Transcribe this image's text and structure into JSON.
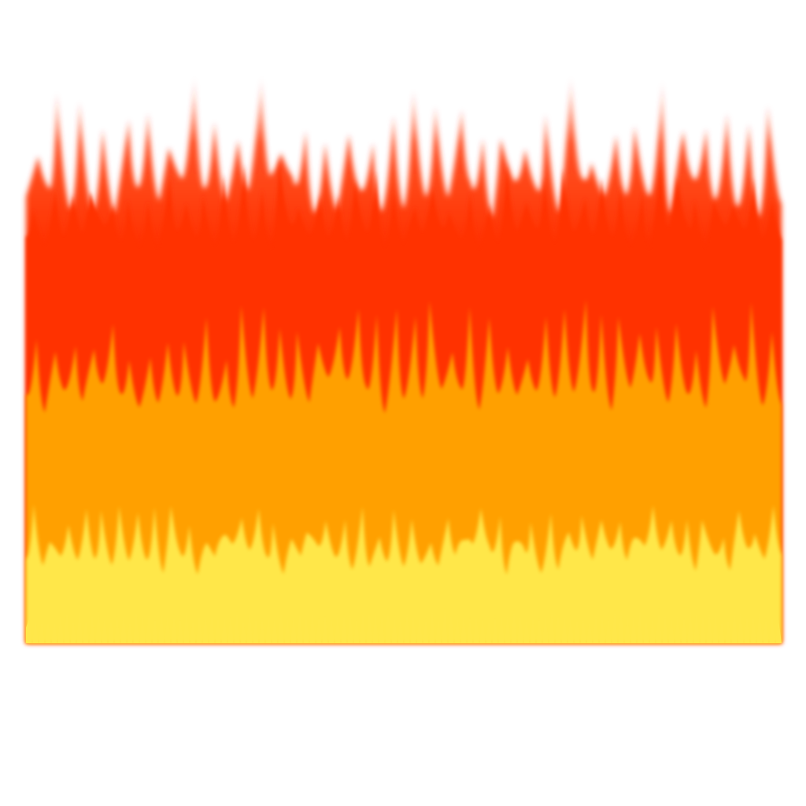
{
  "image": {
    "background_color": "#ffffff",
    "layers": [
      {
        "name": "red-flame-layer",
        "color": "#ff3300"
      },
      {
        "name": "orange-flame-layer",
        "color": "#ffa000"
      },
      {
        "name": "yellow-flame-layer",
        "color": "#ffe74a"
      }
    ]
  }
}
